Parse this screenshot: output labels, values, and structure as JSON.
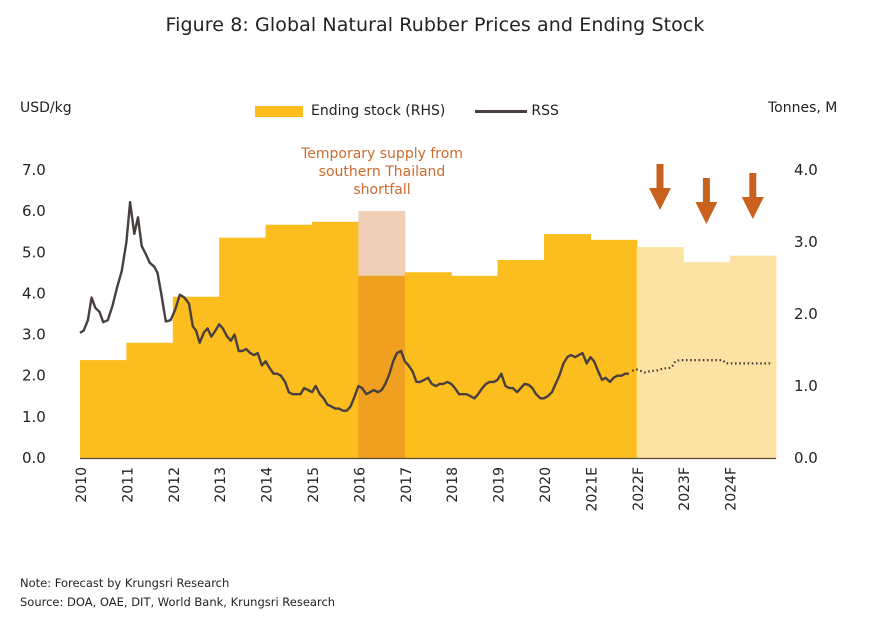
{
  "chart_data": {
    "type": "bar+line",
    "title": "Figure 8: Global Natural Rubber Prices and Ending Stock",
    "ylabel_left": "USD/kg",
    "ylabel_right": "Tonnes, M",
    "ylim_left": [
      0,
      7
    ],
    "ylim_right": [
      0,
      4
    ],
    "yticks_left": [
      "0.0",
      "1.0",
      "2.0",
      "3.0",
      "4.0",
      "5.0",
      "6.0",
      "7.0"
    ],
    "yticks_right": [
      "0.0",
      "1.0",
      "2.0",
      "3.0",
      "4.0"
    ],
    "grid": false,
    "legend_position": "top-center",
    "legend": [
      {
        "label": "Ending stock (RHS)",
        "type": "bar",
        "color": "#fcbd1f"
      },
      {
        "label": "RSS",
        "type": "line",
        "color": "#4a3f3f"
      }
    ],
    "categories": [
      "2010",
      "2011",
      "2012",
      "2013",
      "2014",
      "2015",
      "2016",
      "2017",
      "2018",
      "2019",
      "2020",
      "2021E",
      "2022F",
      "2023F",
      "2024F"
    ],
    "ending_stock": {
      "name": "Ending stock (RHS)",
      "unit": "Tonnes, M",
      "values": [
        1.36,
        1.6,
        2.24,
        3.06,
        3.24,
        3.28,
        2.53,
        2.58,
        2.53,
        2.75,
        3.11,
        3.03,
        2.93,
        2.72,
        2.81
      ],
      "forecast_from_index": 12,
      "colors": {
        "actual": "#fcbd1f",
        "forecast": "#fde3a3",
        "highlight": "#eea020",
        "ghost": "#efcfb6"
      }
    },
    "highlight": {
      "category": "2016",
      "ghost_value": 3.43,
      "annotation": "Temporary supply from southern Thailand shortfall",
      "annotation_lines": [
        "Temporary supply from",
        "southern Thailand",
        "shortfall"
      ]
    },
    "forecast_arrows": {
      "categories": [
        "2022F",
        "2023F",
        "2024F"
      ],
      "direction": "down",
      "color": "#c8601e"
    },
    "rss": {
      "name": "RSS",
      "unit": "USD/kg",
      "actual": [
        [
          0.0,
          3.04
        ],
        [
          0.08,
          3.1
        ],
        [
          0.17,
          3.35
        ],
        [
          0.25,
          3.9
        ],
        [
          0.33,
          3.65
        ],
        [
          0.42,
          3.55
        ],
        [
          0.5,
          3.3
        ],
        [
          0.6,
          3.35
        ],
        [
          0.7,
          3.7
        ],
        [
          0.8,
          4.15
        ],
        [
          0.9,
          4.55
        ],
        [
          1.0,
          5.25
        ],
        [
          1.08,
          6.22
        ],
        [
          1.17,
          5.45
        ],
        [
          1.25,
          5.85
        ],
        [
          1.33,
          5.15
        ],
        [
          1.42,
          4.95
        ],
        [
          1.5,
          4.75
        ],
        [
          1.6,
          4.65
        ],
        [
          1.67,
          4.5
        ],
        [
          1.75,
          4.0
        ],
        [
          1.85,
          3.32
        ],
        [
          1.95,
          3.35
        ],
        [
          2.05,
          3.6
        ],
        [
          2.15,
          3.97
        ],
        [
          2.25,
          3.9
        ],
        [
          2.35,
          3.75
        ],
        [
          2.43,
          3.2
        ],
        [
          2.5,
          3.1
        ],
        [
          2.58,
          2.8
        ],
        [
          2.67,
          3.05
        ],
        [
          2.75,
          3.15
        ],
        [
          2.83,
          2.95
        ],
        [
          2.92,
          3.1
        ],
        [
          3.0,
          3.25
        ],
        [
          3.08,
          3.15
        ],
        [
          3.17,
          2.95
        ],
        [
          3.25,
          2.85
        ],
        [
          3.33,
          3.0
        ],
        [
          3.42,
          2.6
        ],
        [
          3.5,
          2.6
        ],
        [
          3.58,
          2.65
        ],
        [
          3.67,
          2.55
        ],
        [
          3.75,
          2.5
        ],
        [
          3.83,
          2.55
        ],
        [
          3.92,
          2.25
        ],
        [
          4.0,
          2.35
        ],
        [
          4.08,
          2.2
        ],
        [
          4.17,
          2.05
        ],
        [
          4.25,
          2.05
        ],
        [
          4.33,
          2.0
        ],
        [
          4.42,
          1.85
        ],
        [
          4.5,
          1.6
        ],
        [
          4.58,
          1.55
        ],
        [
          4.67,
          1.55
        ],
        [
          4.75,
          1.55
        ],
        [
          4.83,
          1.7
        ],
        [
          4.92,
          1.65
        ],
        [
          5.0,
          1.6
        ],
        [
          5.08,
          1.75
        ],
        [
          5.17,
          1.55
        ],
        [
          5.25,
          1.45
        ],
        [
          5.33,
          1.3
        ],
        [
          5.42,
          1.25
        ],
        [
          5.5,
          1.2
        ],
        [
          5.58,
          1.2
        ],
        [
          5.67,
          1.15
        ],
        [
          5.75,
          1.15
        ],
        [
          5.83,
          1.25
        ],
        [
          5.92,
          1.5
        ],
        [
          6.0,
          1.75
        ],
        [
          6.08,
          1.7
        ],
        [
          6.17,
          1.55
        ],
        [
          6.25,
          1.6
        ],
        [
          6.33,
          1.65
        ],
        [
          6.42,
          1.6
        ],
        [
          6.5,
          1.65
        ],
        [
          6.58,
          1.8
        ],
        [
          6.67,
          2.05
        ],
        [
          6.75,
          2.35
        ],
        [
          6.83,
          2.55
        ],
        [
          6.92,
          2.6
        ],
        [
          7.0,
          2.35
        ],
        [
          7.08,
          2.25
        ],
        [
          7.17,
          2.1
        ],
        [
          7.25,
          1.85
        ],
        [
          7.33,
          1.85
        ],
        [
          7.42,
          1.9
        ],
        [
          7.5,
          1.95
        ],
        [
          7.58,
          1.8
        ],
        [
          7.67,
          1.75
        ],
        [
          7.75,
          1.8
        ],
        [
          7.83,
          1.8
        ],
        [
          7.92,
          1.85
        ],
        [
          8.0,
          1.8
        ],
        [
          8.08,
          1.7
        ],
        [
          8.17,
          1.55
        ],
        [
          8.25,
          1.55
        ],
        [
          8.33,
          1.55
        ],
        [
          8.42,
          1.5
        ],
        [
          8.5,
          1.45
        ],
        [
          8.58,
          1.55
        ],
        [
          8.67,
          1.7
        ],
        [
          8.75,
          1.8
        ],
        [
          8.83,
          1.85
        ],
        [
          8.92,
          1.85
        ],
        [
          9.0,
          1.9
        ],
        [
          9.08,
          2.05
        ],
        [
          9.17,
          1.75
        ],
        [
          9.25,
          1.7
        ],
        [
          9.33,
          1.7
        ],
        [
          9.42,
          1.6
        ],
        [
          9.5,
          1.7
        ],
        [
          9.58,
          1.8
        ],
        [
          9.67,
          1.78
        ],
        [
          9.75,
          1.7
        ],
        [
          9.83,
          1.55
        ],
        [
          9.92,
          1.45
        ],
        [
          10.0,
          1.45
        ],
        [
          10.08,
          1.5
        ],
        [
          10.17,
          1.6
        ],
        [
          10.25,
          1.8
        ],
        [
          10.33,
          2.0
        ],
        [
          10.42,
          2.3
        ],
        [
          10.5,
          2.45
        ],
        [
          10.58,
          2.5
        ],
        [
          10.67,
          2.45
        ],
        [
          10.75,
          2.5
        ],
        [
          10.83,
          2.55
        ],
        [
          10.92,
          2.3
        ],
        [
          11.0,
          2.45
        ],
        [
          11.08,
          2.35
        ],
        [
          11.17,
          2.1
        ],
        [
          11.25,
          1.9
        ],
        [
          11.33,
          1.95
        ],
        [
          11.42,
          1.85
        ],
        [
          11.5,
          1.95
        ],
        [
          11.58,
          2.0
        ],
        [
          11.67,
          2.0
        ],
        [
          11.75,
          2.05
        ],
        [
          11.83,
          2.05
        ]
      ],
      "forecast": [
        [
          11.9,
          2.12
        ],
        [
          12.0,
          2.15
        ],
        [
          12.08,
          2.12
        ],
        [
          12.17,
          2.08
        ],
        [
          12.25,
          2.1
        ],
        [
          12.33,
          2.12
        ],
        [
          12.42,
          2.12
        ],
        [
          12.5,
          2.15
        ],
        [
          12.58,
          2.18
        ],
        [
          12.67,
          2.18
        ],
        [
          12.75,
          2.2
        ],
        [
          12.83,
          2.35
        ],
        [
          12.92,
          2.38
        ],
        [
          13.0,
          2.38
        ],
        [
          13.25,
          2.38
        ],
        [
          13.5,
          2.38
        ],
        [
          13.75,
          2.38
        ],
        [
          13.85,
          2.38
        ],
        [
          13.92,
          2.3
        ],
        [
          14.0,
          2.3
        ],
        [
          14.25,
          2.3
        ],
        [
          14.5,
          2.3
        ],
        [
          14.75,
          2.3
        ],
        [
          14.9,
          2.3
        ]
      ]
    }
  },
  "notes": {
    "note": "Note: Forecast by Krungsri Research",
    "source": "Source: DOA, OAE, DIT, World Bank, Krungsri Research"
  }
}
